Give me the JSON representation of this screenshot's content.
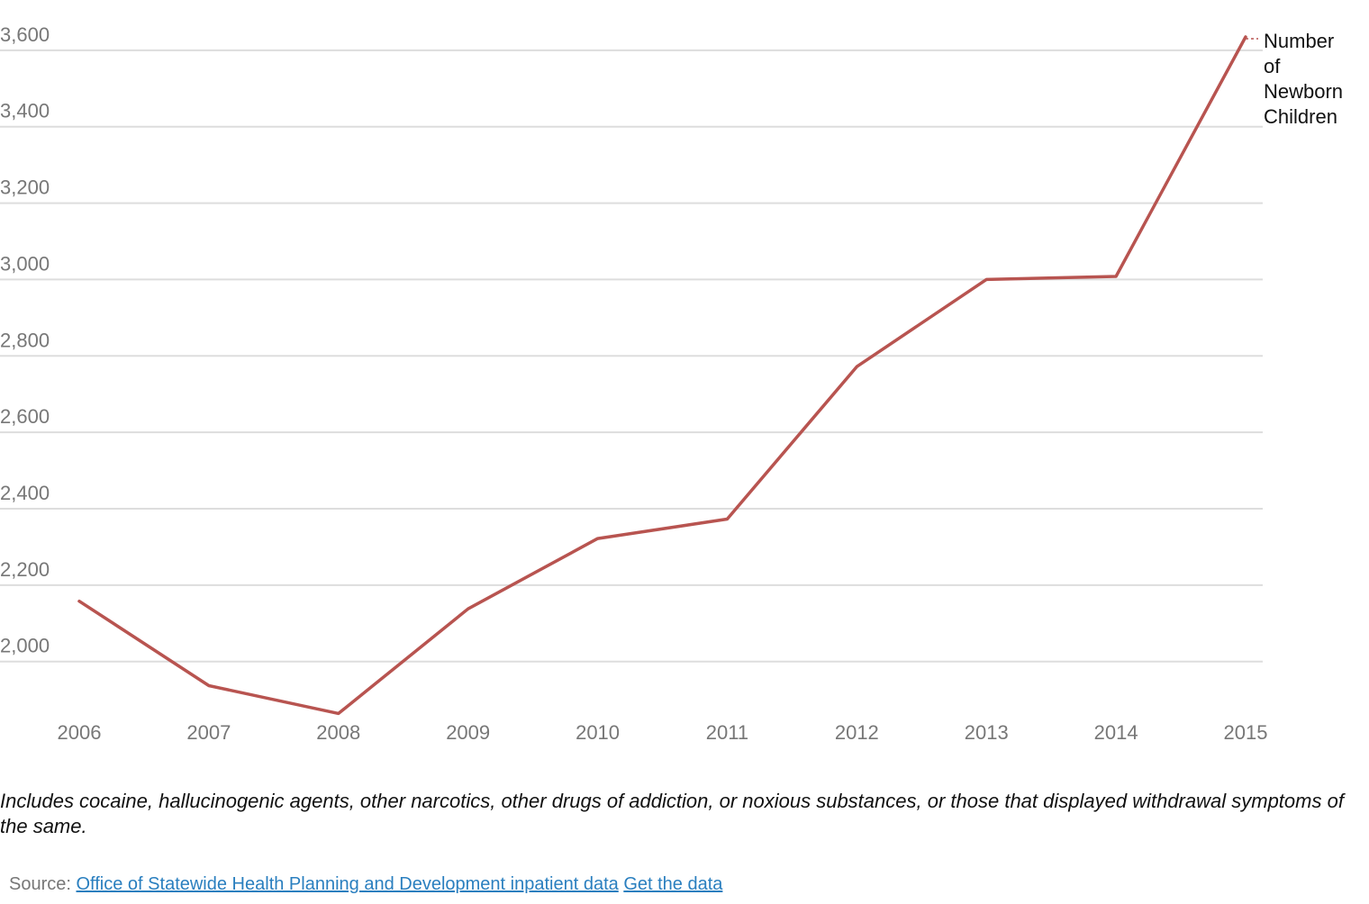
{
  "chart_data": {
    "type": "line",
    "x": [
      "2006",
      "2007",
      "2008",
      "2009",
      "2010",
      "2011",
      "2012",
      "2013",
      "2014",
      "2015"
    ],
    "series": [
      {
        "name": "Number of Newborn Children",
        "values": [
          2158,
          1937,
          1864,
          2138,
          2322,
          2373,
          2772,
          3000,
          3008,
          3635
        ],
        "color": "#b85450"
      }
    ],
    "yticks": [
      2000,
      2200,
      2400,
      2600,
      2800,
      3000,
      3200,
      3400,
      3600
    ],
    "ytick_labels": [
      "2,000",
      "2,200",
      "2,400",
      "2,600",
      "2,800",
      "3,000",
      "3,200",
      "3,400",
      "3,600"
    ],
    "ylim": [
      1865,
      3635
    ],
    "grid": true,
    "legend": "inline-end-label",
    "series_label_lines": [
      "Number",
      "of",
      "Newborn",
      "Children"
    ]
  },
  "note": "Includes cocaine, hallucinogenic agents, other narcotics, other drugs of addiction, or noxious substances, or those that displayed withdrawal symptoms of the same.",
  "source": {
    "prefix": "Source:",
    "link1": "Office of Statewide Health Planning and Development inpatient data",
    "link2": "Get the data"
  },
  "colors": {
    "line": "#b85450",
    "grid": "#dddddd",
    "tick_text": "#777777",
    "link": "#2a7fbf"
  }
}
